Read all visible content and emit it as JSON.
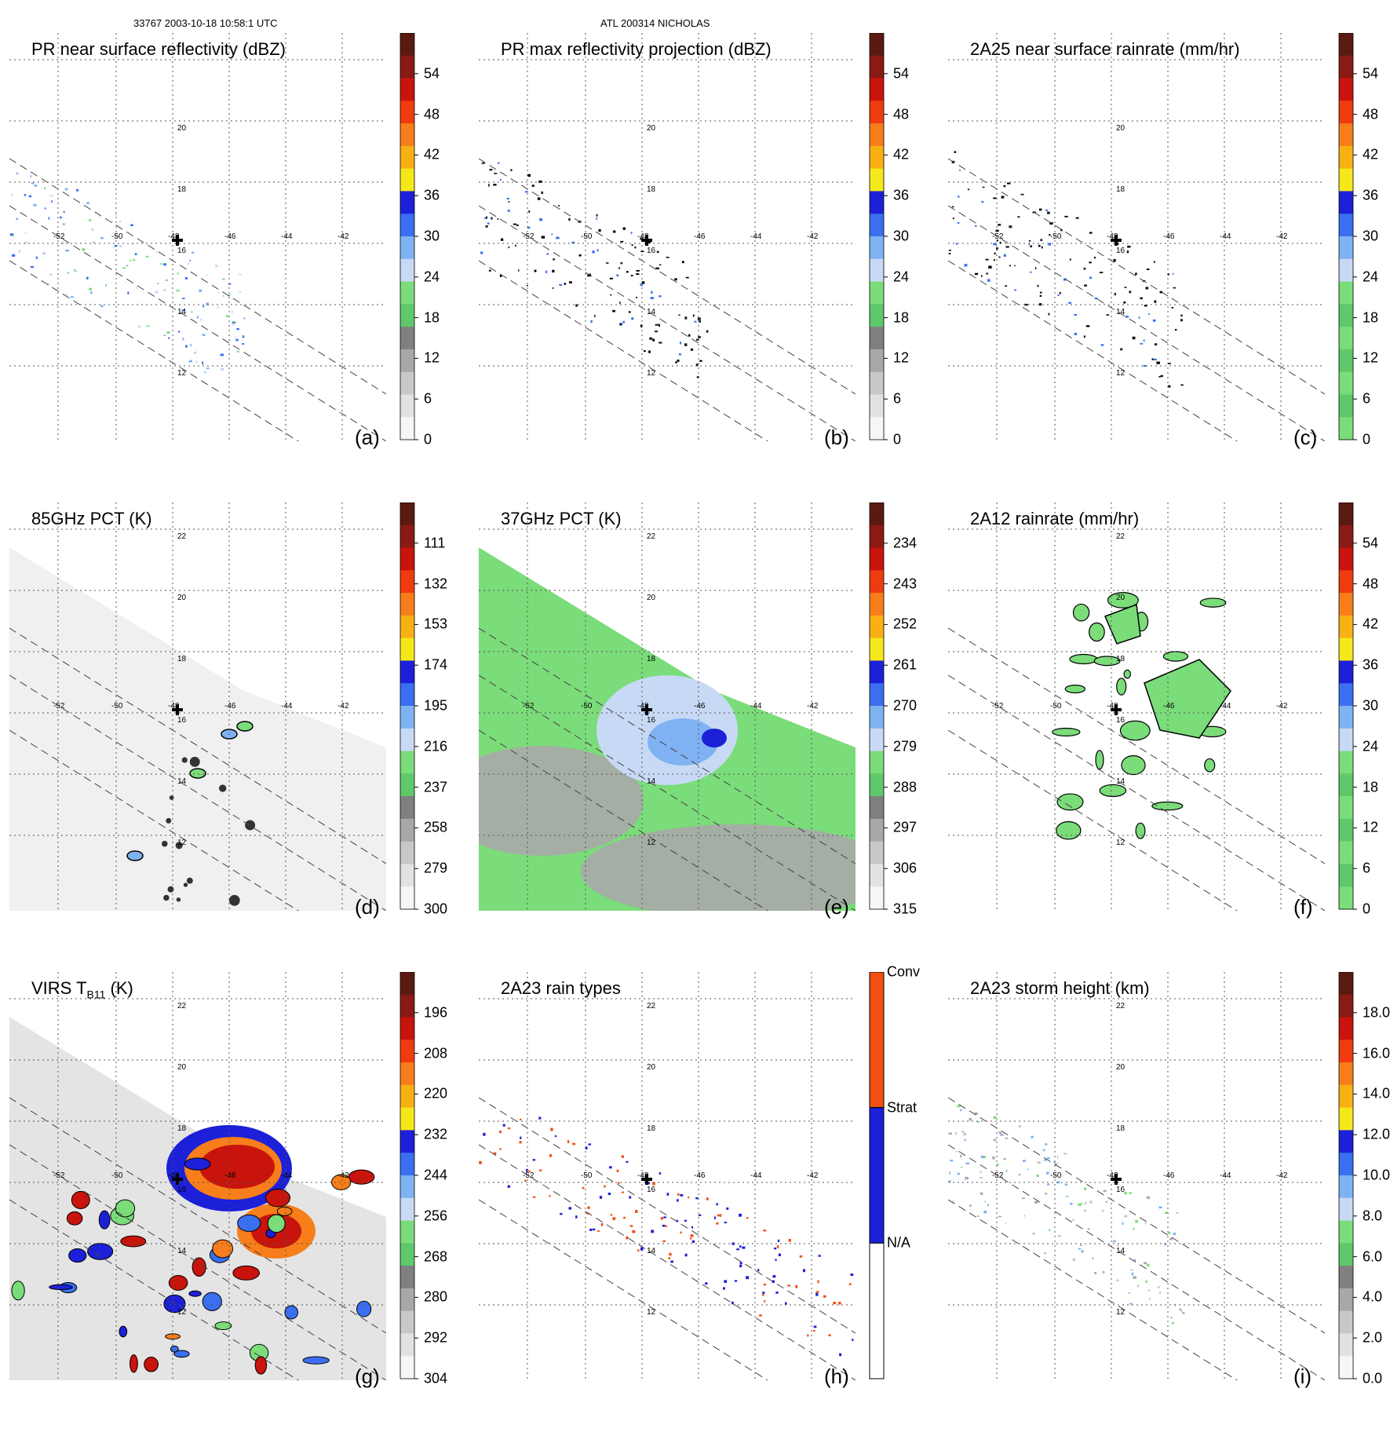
{
  "header": {
    "left": "33767 2003-10-18 10:58:1 UTC",
    "center": "ATL 200314 NICHOLAS"
  },
  "axes": {
    "lon_ticks": [
      "-52",
      "-50",
      "-48",
      "-46",
      "-44",
      "-42"
    ],
    "lat_ticks": [
      "22",
      "20",
      "18",
      "16",
      "14",
      "12"
    ]
  },
  "panels": [
    {
      "id": "a",
      "title": "PR near surface reflectivity (dBZ)",
      "letter": "(a)",
      "map": "swath-dots",
      "colorbar": {
        "labels": [
          "54",
          "48",
          "42",
          "36",
          "30",
          "24",
          "18",
          "12",
          "6",
          "0"
        ],
        "colors": [
          "#5a1a12",
          "#8a1a14",
          "#c8140c",
          "#f03a10",
          "#f77e1a",
          "#f9b015",
          "#f5e81a",
          "#1c20d8",
          "#3a6ff0",
          "#7fb2f2",
          "#c8d9f5",
          "#7bdc7a",
          "#5fc86a",
          "#808080",
          "#a8a8a8",
          "#c8c8c8",
          "#e2e2e2",
          "#f6f6f6"
        ]
      }
    },
    {
      "id": "b",
      "title": "PR max reflectivity projection (dBZ)",
      "letter": "(b)",
      "map": "swath-dots",
      "colorbar": {
        "labels": [
          "54",
          "48",
          "42",
          "36",
          "30",
          "24",
          "18",
          "12",
          "6",
          "0"
        ],
        "colors": [
          "#5a1a12",
          "#8a1a14",
          "#c8140c",
          "#f03a10",
          "#f77e1a",
          "#f9b015",
          "#f5e81a",
          "#1c20d8",
          "#3a6ff0",
          "#7fb2f2",
          "#c8d9f5",
          "#7bdc7a",
          "#5fc86a",
          "#808080",
          "#a8a8a8",
          "#c8c8c8",
          "#e2e2e2",
          "#f6f6f6"
        ]
      }
    },
    {
      "id": "c",
      "title": "2A25 near surface rainrate (mm/hr)",
      "letter": "(c)",
      "map": "swath-dots",
      "colorbar": {
        "labels": [
          "54",
          "48",
          "42",
          "36",
          "30",
          "24",
          "18",
          "12",
          "6",
          "0"
        ],
        "colors": [
          "#5a1a12",
          "#8a1a14",
          "#c8140c",
          "#f03a10",
          "#f77e1a",
          "#f9b015",
          "#f5e81a",
          "#1c20d8",
          "#3a6ff0",
          "#7fb2f2",
          "#c8d9f5",
          "#7bdc7a",
          "#5fc86a",
          "#7bdc7a",
          "#5fc86a",
          "#7bdc7a",
          "#5fc86a",
          "#7bdc7a"
        ]
      }
    },
    {
      "id": "d",
      "title": "85GHz PCT (K)",
      "letter": "(d)",
      "map": "swath-fill-gray",
      "colorbar": {
        "labels": [
          "111",
          "132",
          "153",
          "174",
          "195",
          "216",
          "237",
          "258",
          "279",
          "300"
        ],
        "colors": [
          "#5a1a12",
          "#8a1a14",
          "#c8140c",
          "#f03a10",
          "#f77e1a",
          "#f9b015",
          "#f5e81a",
          "#1c20d8",
          "#3a6ff0",
          "#7fb2f2",
          "#c8d9f5",
          "#7bdc7a",
          "#5fc86a",
          "#808080",
          "#a8a8a8",
          "#c8c8c8",
          "#e2e2e2",
          "#f6f6f6"
        ]
      }
    },
    {
      "id": "e",
      "title": "37GHz PCT (K)",
      "letter": "(e)",
      "map": "swath-fill-green",
      "colorbar": {
        "labels": [
          "234",
          "243",
          "252",
          "261",
          "270",
          "279",
          "288",
          "297",
          "306",
          "315"
        ],
        "colors": [
          "#5a1a12",
          "#8a1a14",
          "#c8140c",
          "#f03a10",
          "#f77e1a",
          "#f9b015",
          "#f5e81a",
          "#1c20d8",
          "#3a6ff0",
          "#7fb2f2",
          "#c8d9f5",
          "#7bdc7a",
          "#5fc86a",
          "#808080",
          "#a8a8a8",
          "#c8c8c8",
          "#e2e2e2",
          "#f6f6f6"
        ]
      }
    },
    {
      "id": "f",
      "title": "2A12 rainrate (mm/hr)",
      "letter": "(f)",
      "map": "swath-blobs",
      "colorbar": {
        "labels": [
          "54",
          "48",
          "42",
          "36",
          "30",
          "24",
          "18",
          "12",
          "6",
          "0"
        ],
        "colors": [
          "#5a1a12",
          "#8a1a14",
          "#c8140c",
          "#f03a10",
          "#f77e1a",
          "#f9b015",
          "#f5e81a",
          "#1c20d8",
          "#3a6ff0",
          "#7fb2f2",
          "#c8d9f5",
          "#7bdc7a",
          "#5fc86a",
          "#7bdc7a",
          "#5fc86a",
          "#7bdc7a",
          "#5fc86a",
          "#7bdc7a"
        ]
      }
    },
    {
      "id": "g",
      "title": "VIRS T",
      "title_sub": "B11",
      "title_suffix": " (K)",
      "letter": "(g)",
      "map": "swath-fill-virs",
      "colorbar": {
        "labels": [
          "196",
          "208",
          "220",
          "232",
          "244",
          "256",
          "268",
          "280",
          "292",
          "304"
        ],
        "colors": [
          "#5a1a12",
          "#8a1a14",
          "#c8140c",
          "#f03a10",
          "#f77e1a",
          "#f9b015",
          "#f5e81a",
          "#1c20d8",
          "#3a6ff0",
          "#7fb2f2",
          "#c8d9f5",
          "#7bdc7a",
          "#5fc86a",
          "#808080",
          "#a8a8a8",
          "#c8c8c8",
          "#e2e2e2",
          "#f6f6f6"
        ]
      }
    },
    {
      "id": "h",
      "title": "2A23 rain types",
      "letter": "(h)",
      "map": "swath-raintype",
      "colorbar": {
        "type": "categorical",
        "labels": [
          "Conv",
          "Strat",
          "N/A"
        ],
        "colors": [
          "#f05010",
          "#1c20d8",
          "#ffffff"
        ]
      }
    },
    {
      "id": "i",
      "title": "2A23 storm height (km)",
      "letter": "(i)",
      "map": "swath-dots-gray",
      "colorbar": {
        "labels": [
          "18.0",
          "16.0",
          "14.0",
          "12.0",
          "10.0",
          "8.0",
          "6.0",
          "4.0",
          "2.0",
          "0.0"
        ],
        "colors": [
          "#5a1a12",
          "#8a1a14",
          "#c8140c",
          "#f03a10",
          "#f77e1a",
          "#f9b015",
          "#f5e81a",
          "#1c20d8",
          "#3a6ff0",
          "#7fb2f2",
          "#c8d9f5",
          "#7bdc7a",
          "#5fc86a",
          "#808080",
          "#a8a8a8",
          "#c8c8c8",
          "#e2e2e2",
          "#f6f6f6"
        ]
      }
    }
  ]
}
